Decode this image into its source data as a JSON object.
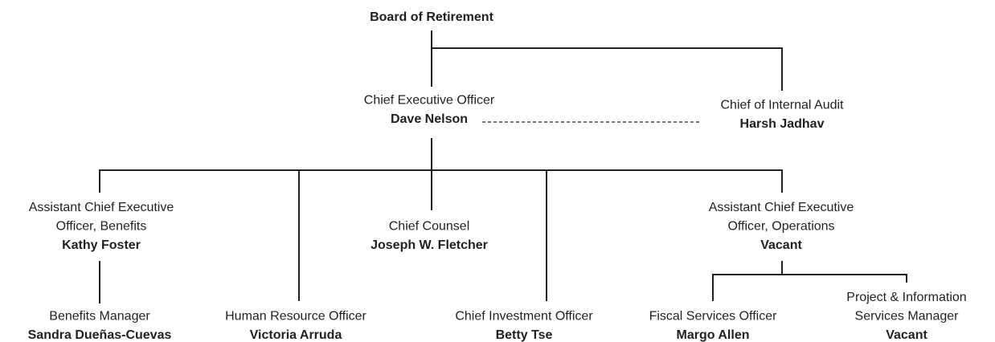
{
  "nodes": [
    {
      "title": [
        "Board of Retirement"
      ]
    },
    {
      "title": [
        "Chief Executive Officer"
      ],
      "name": "Dave Nelson"
    },
    {
      "title": [
        "Chief of Internal Audit"
      ],
      "name": "Harsh Jadhav"
    },
    {
      "title": [
        "Assistant Chief Executive",
        "Officer, Benefits"
      ],
      "name": "Kathy Foster"
    },
    {
      "title": [
        "Chief Counsel"
      ],
      "name": "Joseph W. Fletcher"
    },
    {
      "title": [
        "Assistant Chief Executive",
        "Officer, Operations"
      ],
      "name": "Vacant"
    },
    {
      "title": [
        "Benefits Manager"
      ],
      "name": "Sandra Dueñas-Cuevas"
    },
    {
      "title": [
        "Human Resource Officer"
      ],
      "name": "Victoria Arruda"
    },
    {
      "title": [
        "Chief Investment Officer"
      ],
      "name": "Betty Tse"
    },
    {
      "title": [
        "Fiscal Services Officer"
      ],
      "name": "Margo Allen"
    },
    {
      "title": [
        "Project & Information",
        "Services Manager"
      ],
      "name": "Vacant"
    }
  ]
}
